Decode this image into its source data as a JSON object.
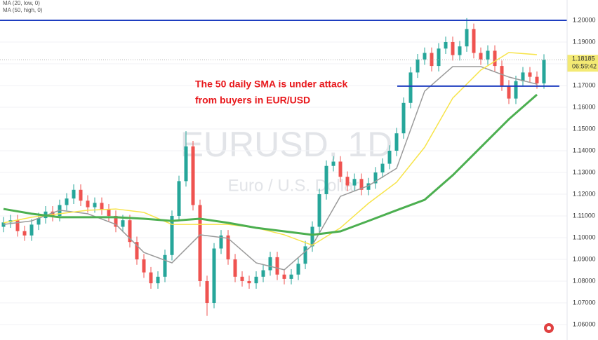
{
  "chart_data": {
    "type": "candlestick",
    "symbol": "EURUSD, 1D",
    "description": "Euro / U.S. Dollar",
    "legend": [
      "MA (20, low, 0)",
      "MA (50, high, 0)"
    ],
    "annotation": [
      "The 50 daily SMA is under attack",
      "from buyers in EUR/USD"
    ],
    "last_price": 1.18185,
    "countdown": "06:59:42",
    "ylim": [
      1.0529,
      1.20935
    ],
    "yticks": [
      {
        "value": 1.06,
        "label": "1.06000"
      },
      {
        "value": 1.07,
        "label": "1.07000"
      },
      {
        "value": 1.08,
        "label": "1.08000"
      },
      {
        "value": 1.09,
        "label": "1.09000"
      },
      {
        "value": 1.1,
        "label": "1.10000"
      },
      {
        "value": 1.11,
        "label": "1.11000"
      },
      {
        "value": 1.12,
        "label": "1.12000"
      },
      {
        "value": 1.13,
        "label": "1.13000"
      },
      {
        "value": 1.14,
        "label": "1.14000"
      },
      {
        "value": 1.15,
        "label": "1.15000"
      },
      {
        "value": 1.16,
        "label": "1.16000"
      },
      {
        "value": 1.17,
        "label": "1.17000"
      },
      {
        "value": 1.18,
        "label": "1.18000"
      },
      {
        "value": 1.19,
        "label": "1.19000"
      },
      {
        "value": 1.2,
        "label": "1.20000"
      }
    ],
    "grid": true,
    "up_color": "#26a69a",
    "down_color": "#ef5350",
    "open": [
      1.105,
      1.107,
      1.108,
      1.103,
      1.101,
      1.106,
      1.109,
      1.112,
      1.11,
      1.115,
      1.118,
      1.122,
      1.117,
      1.114,
      1.116,
      1.113,
      1.11,
      1.105,
      1.108,
      1.098,
      1.09,
      1.084,
      1.079,
      1.082,
      1.092,
      1.11,
      1.126,
      1.142,
      1.115,
      1.08,
      1.07,
      1.095,
      1.101,
      1.09,
      1.082,
      1.08,
      1.079,
      1.082,
      1.085,
      1.091,
      1.083,
      1.081,
      1.083,
      1.088,
      1.096,
      1.105,
      1.12,
      1.133,
      1.135,
      1.128,
      1.124,
      1.127,
      1.122,
      1.125,
      1.13,
      1.134,
      1.14,
      1.148,
      1.162,
      1.176,
      1.182,
      1.185,
      1.179,
      1.187,
      1.19,
      1.184,
      1.188,
      1.196,
      1.185,
      1.182,
      1.186,
      1.179,
      1.17,
      1.164,
      1.172,
      1.176,
      1.174,
      1.171
    ],
    "high": [
      1.1095,
      1.1105,
      1.1105,
      1.1055,
      1.1085,
      1.1115,
      1.1145,
      1.1145,
      1.1175,
      1.1205,
      1.1245,
      1.1245,
      1.1195,
      1.1185,
      1.1185,
      1.1155,
      1.1125,
      1.1105,
      1.1105,
      1.1005,
      1.0925,
      1.0865,
      1.0845,
      1.0945,
      1.1125,
      1.1285,
      1.149,
      1.1445,
      1.1175,
      1.0825,
      1.0975,
      1.1035,
      1.1035,
      1.0925,
      1.0845,
      1.0825,
      1.0845,
      1.0875,
      1.0935,
      1.0935,
      1.0855,
      1.0855,
      1.0905,
      1.0985,
      1.1075,
      1.1225,
      1.1355,
      1.1375,
      1.1375,
      1.1305,
      1.1295,
      1.1295,
      1.1275,
      1.1325,
      1.1365,
      1.1425,
      1.1505,
      1.1645,
      1.1785,
      1.1845,
      1.1875,
      1.1875,
      1.1895,
      1.1925,
      1.1925,
      1.1905,
      1.201,
      1.1985,
      1.1875,
      1.1885,
      1.1885,
      1.1815,
      1.1725,
      1.1745,
      1.1785,
      1.1785,
      1.1765,
      1.1844
    ],
    "low": [
      1.1025,
      1.1045,
      1.1005,
      1.0985,
      1.0985,
      1.1035,
      1.1065,
      1.1075,
      1.1075,
      1.1125,
      1.1155,
      1.1145,
      1.1115,
      1.1115,
      1.1105,
      1.1075,
      1.1025,
      1.1025,
      1.0955,
      1.0875,
      1.0815,
      1.0765,
      1.0765,
      1.0795,
      1.0895,
      1.1075,
      1.1235,
      1.1125,
      1.0775,
      1.064,
      1.0675,
      1.0925,
      1.0875,
      1.0795,
      1.0775,
      1.0765,
      1.0765,
      1.0795,
      1.0825,
      1.0805,
      1.0785,
      1.0785,
      1.0805,
      1.0855,
      1.0935,
      1.1025,
      1.1175,
      1.1305,
      1.1255,
      1.1215,
      1.1215,
      1.1195,
      1.1195,
      1.1225,
      1.1275,
      1.1315,
      1.1375,
      1.1455,
      1.1595,
      1.1735,
      1.1795,
      1.1765,
      1.1765,
      1.1845,
      1.1815,
      1.1815,
      1.1855,
      1.1825,
      1.1795,
      1.1795,
      1.1765,
      1.1675,
      1.1615,
      1.1615,
      1.1695,
      1.1715,
      1.1685,
      1.1685
    ],
    "close": [
      1.107,
      1.108,
      1.103,
      1.101,
      1.106,
      1.109,
      1.112,
      1.11,
      1.115,
      1.118,
      1.122,
      1.117,
      1.114,
      1.116,
      1.113,
      1.11,
      1.105,
      1.108,
      1.098,
      1.09,
      1.084,
      1.079,
      1.082,
      1.092,
      1.11,
      1.126,
      1.142,
      1.115,
      1.08,
      1.07,
      1.095,
      1.101,
      1.09,
      1.082,
      1.08,
      1.079,
      1.082,
      1.085,
      1.091,
      1.083,
      1.081,
      1.083,
      1.088,
      1.096,
      1.105,
      1.12,
      1.133,
      1.135,
      1.128,
      1.124,
      1.127,
      1.122,
      1.125,
      1.13,
      1.134,
      1.14,
      1.148,
      1.162,
      1.176,
      1.182,
      1.185,
      1.179,
      1.187,
      1.19,
      1.184,
      1.188,
      1.196,
      1.185,
      1.182,
      1.186,
      1.179,
      1.17,
      1.164,
      1.172,
      1.176,
      1.174,
      1.171,
      1.18185
    ],
    "ma_x": [
      0,
      4,
      8,
      12,
      16,
      20,
      24,
      28,
      32,
      36,
      40,
      44,
      48,
      52,
      56,
      60,
      64,
      68,
      72,
      76
    ],
    "ma": [
      {
        "color": "#9a9a9a",
        "width": 1.5,
        "values": [
          1.1061,
          1.1077,
          1.1126,
          1.111,
          1.1061,
          1.0932,
          1.0884,
          1.1013,
          1.0997,
          1.0884,
          1.0852,
          1.0965,
          1.119,
          1.1239,
          1.1319,
          1.1674,
          1.1787,
          1.1787,
          1.1739,
          1.1706
        ]
      },
      {
        "color": "#f7e44a",
        "width": 1.5,
        "values": [
          1.1068,
          1.1094,
          1.111,
          1.1126,
          1.1132,
          1.1116,
          1.1061,
          1.1061,
          1.1061,
          1.1045,
          1.1013,
          1.0965,
          1.1045,
          1.1158,
          1.1255,
          1.1416,
          1.1642,
          1.1771,
          1.1852,
          1.1842
        ]
      },
      {
        "color": "#4caf50",
        "width": 3,
        "values": [
          1.1132,
          1.111,
          1.1094,
          1.1094,
          1.1094,
          1.1087,
          1.1077,
          1.1087,
          1.1068,
          1.1045,
          1.1029,
          1.1013,
          1.1029,
          1.1077,
          1.1126,
          1.1174,
          1.1287,
          1.1416,
          1.1545,
          1.1658
        ]
      }
    ],
    "levels": [
      1.2,
      1.1697
    ],
    "level_color": "#1e3ec0"
  }
}
